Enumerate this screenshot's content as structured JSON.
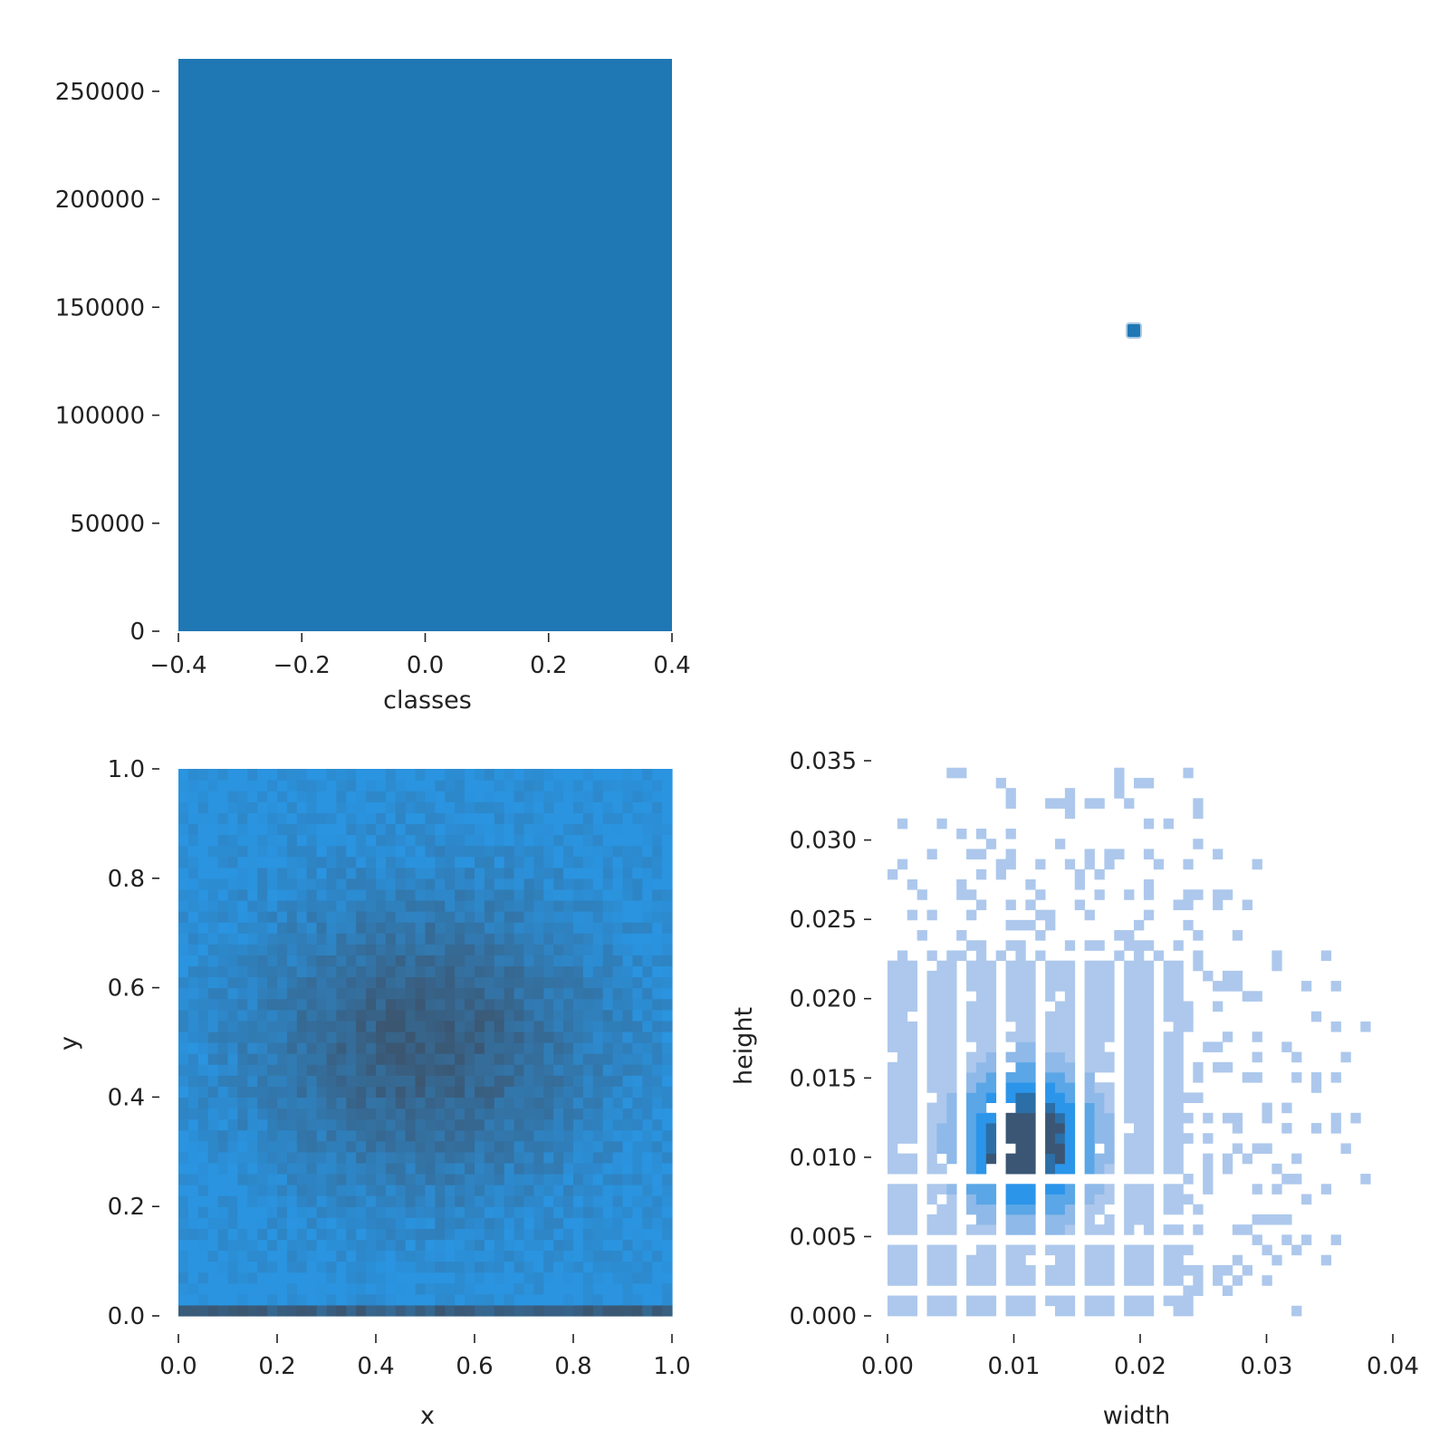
{
  "chart_data": [
    {
      "id": "classes_hist",
      "type": "bar",
      "xlabel": "classes",
      "ylabel": "",
      "xlim": [
        -0.4,
        0.4
      ],
      "ylim": [
        0,
        265000
      ],
      "xticks": [
        -0.4,
        -0.2,
        0.0,
        0.2,
        0.4
      ],
      "xtick_labels": [
        "−0.4",
        "−0.2",
        "0.0",
        "0.2",
        "0.4"
      ],
      "yticks": [
        0,
        50000,
        100000,
        150000,
        200000,
        250000
      ],
      "ytick_labels": [
        "0",
        "50000",
        "100000",
        "150000",
        "200000",
        "250000"
      ],
      "bars": [
        {
          "x0": -0.4,
          "x1": 0.4,
          "value": 265000
        }
      ],
      "color": "#1f77b4"
    },
    {
      "id": "marker",
      "type": "scatter",
      "points": [
        {
          "x": 0,
          "y": 0
        }
      ],
      "color": "#1f77b4"
    },
    {
      "id": "xy_heatmap",
      "type": "heatmap",
      "xlabel": "x",
      "ylabel": "y",
      "xlim": [
        0,
        1
      ],
      "ylim": [
        0,
        1
      ],
      "bins": 50,
      "xticks": [
        0.0,
        0.2,
        0.4,
        0.6,
        0.8,
        1.0
      ],
      "xtick_labels": [
        "0.0",
        "0.2",
        "0.4",
        "0.6",
        "0.8",
        "1.0"
      ],
      "yticks": [
        0.0,
        0.2,
        0.4,
        0.6,
        0.8,
        1.0
      ],
      "ytick_labels": [
        "0.0",
        "0.2",
        "0.4",
        "0.6",
        "0.8",
        "1.0"
      ],
      "density_center": [
        0.5,
        0.5
      ],
      "light_color": "#2a94e0",
      "dark_color": "#3b5671"
    },
    {
      "id": "wh_heatmap",
      "type": "heatmap",
      "xlabel": "width",
      "ylabel": "height",
      "xlim": [
        0,
        0.04
      ],
      "ylim": [
        0,
        0.035
      ],
      "xticks": [
        0.0,
        0.01,
        0.02,
        0.03,
        0.04
      ],
      "xtick_labels": [
        "0.00",
        "0.01",
        "0.02",
        "0.03",
        "0.04"
      ],
      "yticks": [
        0.0,
        0.005,
        0.01,
        0.015,
        0.02,
        0.025,
        0.03,
        0.035
      ],
      "ytick_labels": [
        "0.000",
        "0.005",
        "0.010",
        "0.015",
        "0.020",
        "0.025",
        "0.030",
        "0.035"
      ],
      "cell_width": 0.00078,
      "cell_height": 0.00064,
      "core_region": {
        "width": [
          0.0,
          0.0235
        ],
        "height": [
          0.0,
          0.0225
        ]
      },
      "peak": [
        0.011,
        0.011
      ],
      "palette": [
        "#adc8ec",
        "#8fb9e8",
        "#5aa6e6",
        "#2b95ea",
        "#2c6ea6",
        "#3a5674"
      ]
    }
  ]
}
